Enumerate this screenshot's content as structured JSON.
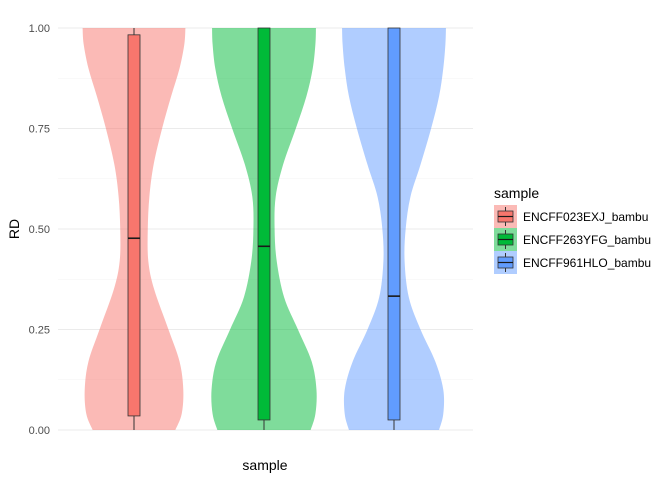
{
  "chart_data": {
    "type": "violin",
    "title": "",
    "xlabel": "sample",
    "ylabel": "RD",
    "ylim": [
      0,
      1
    ],
    "yticks": [
      "0.00",
      "0.25",
      "0.50",
      "0.75",
      "1.00"
    ],
    "grid": true,
    "legend": {
      "title": "sample",
      "position": "right"
    },
    "series": [
      {
        "name": "ENCFF023EXJ_bambu",
        "fill": "#F8766D",
        "violin_density": [
          [
            0.0,
            0.78
          ],
          [
            0.04,
            0.9
          ],
          [
            0.1,
            0.93
          ],
          [
            0.17,
            0.86
          ],
          [
            0.25,
            0.65
          ],
          [
            0.35,
            0.38
          ],
          [
            0.42,
            0.27
          ],
          [
            0.5,
            0.26
          ],
          [
            0.58,
            0.29
          ],
          [
            0.66,
            0.37
          ],
          [
            0.75,
            0.53
          ],
          [
            0.83,
            0.7
          ],
          [
            0.9,
            0.86
          ],
          [
            0.96,
            0.95
          ],
          [
            1.0,
            0.97
          ]
        ],
        "box": {
          "min": 0.0,
          "q1": 0.035,
          "median": 0.477,
          "q3": 0.983,
          "max": 1.0
        }
      },
      {
        "name": "ENCFF263YFG_bambu",
        "fill": "#00BA38",
        "violin_density": [
          [
            0.0,
            0.88
          ],
          [
            0.04,
            0.97
          ],
          [
            0.1,
            0.99
          ],
          [
            0.17,
            0.9
          ],
          [
            0.25,
            0.64
          ],
          [
            0.33,
            0.38
          ],
          [
            0.42,
            0.24
          ],
          [
            0.5,
            0.2
          ],
          [
            0.58,
            0.22
          ],
          [
            0.66,
            0.36
          ],
          [
            0.75,
            0.6
          ],
          [
            0.83,
            0.8
          ],
          [
            0.9,
            0.92
          ],
          [
            0.96,
            0.97
          ],
          [
            1.0,
            0.98
          ]
        ],
        "box": {
          "min": 0.0,
          "q1": 0.025,
          "median": 0.457,
          "q3": 1.0,
          "max": 1.0
        }
      },
      {
        "name": "ENCFF961HLO_bambu",
        "fill": "#619CFF",
        "violin_density": [
          [
            0.0,
            0.85
          ],
          [
            0.04,
            0.93
          ],
          [
            0.1,
            0.93
          ],
          [
            0.17,
            0.78
          ],
          [
            0.25,
            0.5
          ],
          [
            0.33,
            0.28
          ],
          [
            0.42,
            0.2
          ],
          [
            0.5,
            0.22
          ],
          [
            0.58,
            0.31
          ],
          [
            0.66,
            0.5
          ],
          [
            0.75,
            0.7
          ],
          [
            0.83,
            0.85
          ],
          [
            0.9,
            0.93
          ],
          [
            0.96,
            0.97
          ],
          [
            1.0,
            0.98
          ]
        ],
        "box": {
          "min": 0.0,
          "q1": 0.025,
          "median": 0.333,
          "q3": 1.0,
          "max": 1.0
        }
      }
    ]
  }
}
